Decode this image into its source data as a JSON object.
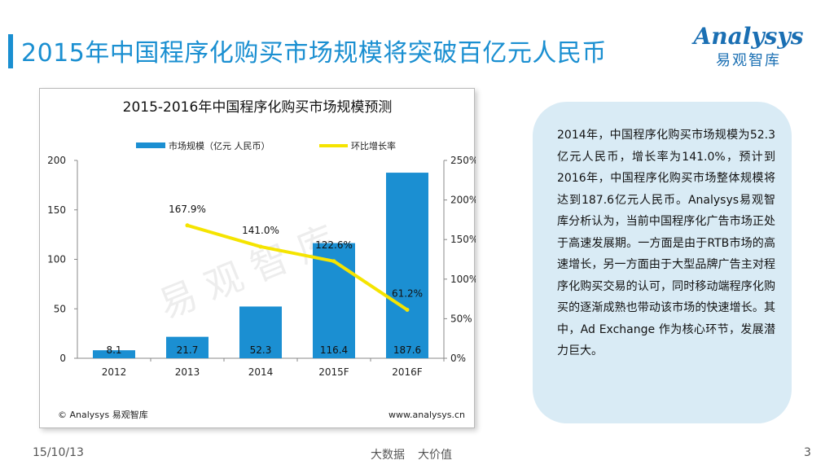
{
  "header": {
    "title": "2015年中国程序化购买市场规模将突破百亿元人民币",
    "logo_main": "Analysys",
    "logo_sub": "易观智库"
  },
  "chart_data": {
    "type": "bar",
    "title": "2015-2016年中国程序化购买市场规模预测",
    "categories": [
      "2012",
      "2013",
      "2014",
      "2015F",
      "2016F"
    ],
    "series": [
      {
        "name": "市场规模（亿元 人民币）",
        "kind": "bar",
        "axis": "left",
        "values": [
          8.1,
          21.7,
          52.3,
          116.4,
          187.6
        ],
        "labels": [
          "8.1",
          "21.7",
          "52.3",
          "116.4",
          "187.6"
        ]
      },
      {
        "name": "环比增长率",
        "kind": "line",
        "axis": "right",
        "values": [
          null,
          167.9,
          141.0,
          122.6,
          61.2
        ],
        "labels": [
          "",
          "167.9%",
          "141.0%",
          "122.6%",
          "61.2%"
        ]
      }
    ],
    "ylim_left": [
      0,
      200
    ],
    "yticks_left": [
      "0",
      "50",
      "100",
      "150",
      "200"
    ],
    "ylim_right": [
      0,
      250
    ],
    "yticks_right": [
      "0%",
      "50%",
      "100%",
      "150%",
      "200%",
      "250%"
    ],
    "watermark": "易 观 智 库",
    "source": "© Analysys 易观智库",
    "url": "www.analysys.cn",
    "colors": {
      "bar": "#1b8fd2",
      "line": "#f5e400",
      "axis": "#888888"
    }
  },
  "panel": {
    "text": "2014年，中国程序化购买市场规模为52.3亿元人民币，增长率为141.0%，预计到2016年，中国程序化购买市场整体规模将达到187.6亿元人民币。Analysys易观智库分析认为，当前中国程序化广告市场正处于高速发展期。一方面是由于RTB市场的高速增长，另一方面由于大型品牌广告主对程序化购买交易的认可，同时移动端程序化购买的逐渐成熟也带动该市场的快速增长。其中，Ad Exchange 作为核心环节，发展潜力巨大。"
  },
  "footer": {
    "date": "15/10/13",
    "center_a": "大数据",
    "center_b": "大价值",
    "page": "3"
  }
}
